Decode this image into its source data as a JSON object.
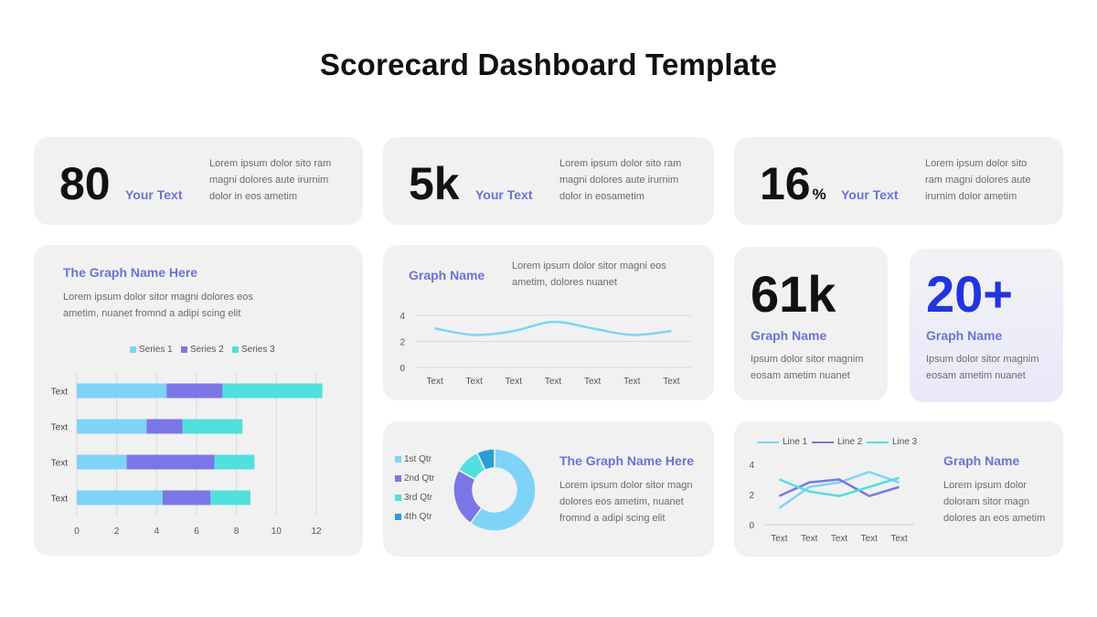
{
  "title": "Scorecard Dashboard Template",
  "colors": {
    "series1": "#7fd3f7",
    "series2": "#7b76e6",
    "series3": "#4fe0df",
    "q4": "#2a9ed8",
    "accent": "#6b73d8",
    "strong_blue": "#2233e0"
  },
  "kpis": [
    {
      "value": "80",
      "unit": "",
      "label": "Your Text",
      "desc": "Lorem ipsum dolor sito ram magni dolores aute irurnim dolor in eos ametim"
    },
    {
      "value": "5k",
      "unit": "",
      "label": "Your Text",
      "desc": "Lorem ipsum dolor sito ram magni dolores aute irurnim dolor in eosametim"
    },
    {
      "value": "16",
      "unit": "%",
      "label": "Your Text",
      "desc": "Lorem ipsum dolor sito ram magni dolores aute irurnim dolor ametim"
    }
  ],
  "bar_card": {
    "title": "The Graph Name Here",
    "desc": "Lorem ipsum dolor sitor magni dolores eos ametim, nuanet fromnd a adipi scing elit"
  },
  "line_card": {
    "title": "Graph Name",
    "desc": "Lorem ipsum dolor sitor magni eos ametim, dolores nuanet"
  },
  "donut_card": {
    "title": "The Graph Name Here",
    "desc": "Lorem ipsum dolor sitor magn dolores eos ametim, nuanet fromnd a adipi scing elit"
  },
  "stat_61k": {
    "value": "61k",
    "label": "Graph Name",
    "desc": "Ipsum dolor sitor magnim eosam ametim nuanet"
  },
  "stat_20": {
    "value": "20+",
    "label": "Graph Name",
    "desc": "Ipsum dolor sitor magnim eosam ametim nuanet"
  },
  "multi_card": {
    "title": "Graph Name",
    "desc": "Lorem ipsum dolor doloram sitor magn dolores an eos ametim"
  },
  "chart_data": [
    {
      "type": "bar",
      "orientation": "horizontal-stacked",
      "categories": [
        "Text",
        "Text",
        "Text",
        "Text"
      ],
      "series": [
        {
          "name": "Series 1",
          "values": [
            4.5,
            3.5,
            2.5,
            4.3
          ]
        },
        {
          "name": "Series 2",
          "values": [
            2.8,
            1.8,
            4.4,
            2.4
          ]
        },
        {
          "name": "Series 3",
          "values": [
            5.0,
            3.0,
            2.0,
            2.0
          ]
        }
      ],
      "xlim": [
        0,
        12
      ],
      "xticks": [
        "0",
        "2",
        "4",
        "6",
        "8",
        "10",
        "12"
      ],
      "legend": "top",
      "grid": true
    },
    {
      "type": "line",
      "categories": [
        "Text",
        "Text",
        "Text",
        "Text",
        "Text",
        "Text",
        "Text"
      ],
      "values": [
        3.0,
        2.5,
        2.8,
        3.5,
        3.0,
        2.5,
        2.8
      ],
      "ylim": [
        0,
        4
      ],
      "yticks": [
        "0",
        "2",
        "4"
      ],
      "grid": true
    },
    {
      "type": "pie",
      "donut": true,
      "labels": [
        "1st Qtr",
        "2nd Qtr",
        "3rd Qtr",
        "4th Qtr"
      ],
      "values": [
        60,
        23,
        10,
        7
      ],
      "legend": "left"
    },
    {
      "type": "line",
      "categories": [
        "Text",
        "Text",
        "Text",
        "Text",
        "Text"
      ],
      "series": [
        {
          "name": "Line 1",
          "values": [
            1.1,
            2.5,
            2.8,
            3.5,
            2.8
          ]
        },
        {
          "name": "Line 2",
          "values": [
            1.9,
            2.8,
            3.0,
            1.9,
            2.5
          ]
        },
        {
          "name": "Line 3",
          "values": [
            3.0,
            2.2,
            1.9,
            2.5,
            3.1
          ]
        }
      ],
      "ylim": [
        0,
        4
      ],
      "yticks": [
        "0",
        "2",
        "4"
      ],
      "legend": "top",
      "grid": false
    }
  ]
}
